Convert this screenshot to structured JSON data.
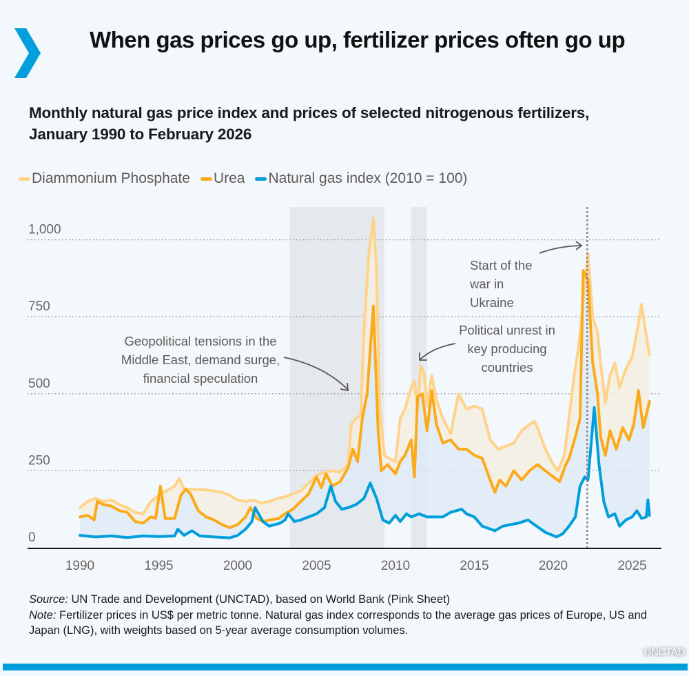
{
  "header": {
    "icon": "chevron-right-icon",
    "title": "When gas prices go up, fertilizer prices often go up",
    "subtitle": "Monthly natural gas price index and prices of selected nitrogenous fertilizers, January 1990 to February 2026"
  },
  "colors": {
    "brand": "#009edb",
    "dap": "#ffd38a",
    "urea": "#fbaa19",
    "gas": "#009edb",
    "highlight_band": "#e5e9ee",
    "background": "#f3f8fc"
  },
  "legend": [
    {
      "label": "Diammonium Phosphate",
      "color": "#ffd38a"
    },
    {
      "label": "Urea",
      "color": "#fbaa19"
    },
    {
      "label": "Natural gas index (2010 = 100)",
      "color": "#009edb"
    }
  ],
  "chart_data": {
    "type": "line",
    "title": "Monthly natural gas price index and prices of selected nitrogenous fertilizers, January 1990 to February 2026",
    "xlabel": "",
    "ylabel": "",
    "xlim": [
      1986.7,
      2027.3
    ],
    "ylim": [
      0,
      1000
    ],
    "grid": true,
    "legend_position": "top-left",
    "x_ticks": [
      1990,
      1995,
      2000,
      2005,
      2010,
      2015,
      2020,
      2025
    ],
    "x_tick_labels": [
      "1990",
      "1995",
      "2000",
      "2005",
      "2010",
      "2015",
      "2020",
      "2025"
    ],
    "y_ticks": [
      0,
      250,
      500,
      750,
      1000
    ],
    "y_tick_labels": [
      "0",
      "250",
      "500",
      "750",
      "1,000"
    ],
    "highlight_periods": [
      {
        "from": 2003.3,
        "to": 2009.3
      },
      {
        "from": 2011.0,
        "to": 2012.0
      }
    ],
    "event_line": {
      "x": 2022.15,
      "label": "Start of the war in Ukraine"
    },
    "annotations": [
      {
        "name": "geopolitical",
        "lines": [
          "Geopolitical tensions in the",
          "Middle East, demand surge,",
          "financial speculation"
        ]
      },
      {
        "name": "unrest",
        "lines": [
          "Political unrest in",
          "key producing",
          "countries"
        ]
      },
      {
        "name": "ukraine",
        "lines": [
          "Start of the",
          "war in",
          "Ukraine"
        ]
      }
    ],
    "series": [
      {
        "name": "Diammonium Phosphate",
        "color": "#ffd38a",
        "x": [
          1990,
          1990.5,
          1991,
          1991.5,
          1992,
          1992.5,
          1993,
          1993.5,
          1994,
          1994.5,
          1995,
          1995.5,
          1996,
          1996.3,
          1996.6,
          1997,
          1998,
          1999,
          1999.5,
          2000,
          2000.5,
          2001,
          2001.5,
          2002,
          2002.5,
          2003,
          2003.5,
          2004,
          2004.5,
          2005,
          2005.5,
          2006,
          2006.5,
          2007,
          2007.2,
          2007.5,
          2007.8,
          2008,
          2008.3,
          2008.6,
          2008.8,
          2009,
          2009.3,
          2009.6,
          2010,
          2010.3,
          2010.6,
          2011,
          2011.2,
          2011.4,
          2011.6,
          2011.8,
          2012,
          2012.3,
          2012.6,
          2013,
          2013.5,
          2014,
          2014.5,
          2015,
          2015.5,
          2016,
          2016.5,
          2017,
          2017.5,
          2018,
          2018.5,
          2018.8,
          2019,
          2019.5,
          2020,
          2020.3,
          2020.7,
          2021,
          2021.3,
          2021.6,
          2021.8,
          2022.2,
          2022.5,
          2022.8,
          2023,
          2023.3,
          2023.6,
          2023.9,
          2024.2,
          2024.6,
          2025,
          2025.3,
          2025.6,
          2025.8,
          2026.1
        ],
        "values": [
          130,
          150,
          160,
          150,
          155,
          140,
          130,
          115,
          110,
          150,
          170,
          185,
          200,
          225,
          190,
          190,
          188,
          180,
          170,
          155,
          150,
          155,
          145,
          150,
          160,
          165,
          175,
          185,
          210,
          235,
          245,
          250,
          245,
          270,
          400,
          420,
          430,
          700,
          950,
          1070,
          900,
          450,
          300,
          290,
          280,
          420,
          450,
          520,
          540,
          450,
          590,
          570,
          460,
          560,
          480,
          420,
          370,
          500,
          450,
          460,
          450,
          350,
          320,
          330,
          340,
          380,
          400,
          410,
          390,
          320,
          270,
          250,
          300,
          420,
          550,
          650,
          750,
          955,
          750,
          700,
          600,
          470,
          560,
          600,
          520,
          580,
          620,
          700,
          790,
          720,
          625
        ]
      },
      {
        "name": "Urea",
        "color": "#fbaa19",
        "x": [
          1990,
          1990.5,
          1990.9,
          1991.1,
          1991.5,
          1992,
          1992.5,
          1993,
          1993.5,
          1994,
          1994.5,
          1994.8,
          1995.1,
          1995.4,
          1996,
          1996.4,
          1996.7,
          1997,
          1997.5,
          1998,
          1998.5,
          1999,
          1999.5,
          2000,
          2000.5,
          2000.8,
          2001.2,
          2001.6,
          2002,
          2002.6,
          2003,
          2003.5,
          2004,
          2004.5,
          2005,
          2005.3,
          2005.6,
          2006,
          2006.5,
          2007,
          2007.3,
          2007.6,
          2007.9,
          2008.2,
          2008.6,
          2008.9,
          2009.1,
          2009.5,
          2010,
          2010.3,
          2010.6,
          2011,
          2011.2,
          2011.4,
          2011.7,
          2012,
          2012.3,
          2012.6,
          2013,
          2013.5,
          2014,
          2014.5,
          2015,
          2015.5,
          2016,
          2016.3,
          2016.6,
          2017,
          2017.5,
          2018,
          2018.5,
          2019,
          2019.5,
          2020,
          2020.4,
          2020.8,
          2021,
          2021.4,
          2021.7,
          2021.9,
          2022.2,
          2022.5,
          2022.8,
          2023,
          2023.3,
          2023.6,
          2024,
          2024.4,
          2024.8,
          2025.1,
          2025.4,
          2025.7,
          2026.1
        ],
        "values": [
          100,
          105,
          90,
          150,
          140,
          135,
          120,
          115,
          85,
          80,
          100,
          95,
          200,
          95,
          95,
          170,
          190,
          175,
          120,
          100,
          90,
          75,
          65,
          75,
          100,
          130,
          95,
          85,
          90,
          95,
          110,
          125,
          150,
          175,
          230,
          195,
          240,
          200,
          215,
          260,
          320,
          280,
          420,
          500,
          785,
          380,
          250,
          270,
          240,
          280,
          300,
          350,
          230,
          490,
          500,
          380,
          510,
          400,
          340,
          350,
          320,
          320,
          300,
          290,
          220,
          180,
          220,
          200,
          250,
          220,
          250,
          270,
          250,
          230,
          215,
          270,
          290,
          360,
          420,
          900,
          870,
          600,
          500,
          360,
          300,
          380,
          320,
          390,
          350,
          400,
          510,
          390,
          475
        ]
      },
      {
        "name": "Natural gas index (2010 = 100)",
        "color": "#009edb",
        "x": [
          1990,
          1991,
          1992,
          1993,
          1994,
          1995,
          1996,
          1996.2,
          1996.6,
          1997.1,
          1997.6,
          1998.5,
          1999.5,
          2000,
          2000.5,
          2000.9,
          2001.1,
          2001.6,
          2002,
          2002.7,
          2003,
          2003.2,
          2003.6,
          2004,
          2004.5,
          2005,
          2005.5,
          2005.9,
          2006.2,
          2006.6,
          2007,
          2007.5,
          2008,
          2008.4,
          2008.8,
          2009.2,
          2009.6,
          2010,
          2010.3,
          2010.7,
          2011,
          2011.5,
          2012,
          2012.5,
          2013,
          2013.5,
          2014.2,
          2014.5,
          2015,
          2015.5,
          2016.3,
          2016.8,
          2017.3,
          2017.8,
          2018.4,
          2018.8,
          2019.5,
          2020.2,
          2020.6,
          2021,
          2021.4,
          2021.7,
          2022,
          2022.2,
          2022.6,
          2022.9,
          2023.2,
          2023.5,
          2023.9,
          2024.2,
          2024.6,
          2025,
          2025.3,
          2025.6,
          2025.9,
          2026,
          2026.1
        ],
        "values": [
          40,
          35,
          38,
          33,
          38,
          36,
          38,
          60,
          40,
          55,
          38,
          35,
          32,
          40,
          60,
          85,
          130,
          85,
          70,
          80,
          90,
          110,
          85,
          90,
          100,
          110,
          130,
          200,
          150,
          125,
          130,
          140,
          160,
          210,
          160,
          90,
          80,
          105,
          85,
          110,
          100,
          110,
          100,
          100,
          100,
          115,
          125,
          110,
          100,
          70,
          55,
          70,
          75,
          80,
          90,
          75,
          50,
          35,
          45,
          70,
          100,
          200,
          230,
          220,
          455,
          270,
          150,
          100,
          110,
          70,
          90,
          100,
          120,
          95,
          100,
          155,
          105
        ]
      }
    ]
  },
  "footer": {
    "source_label": "Source:",
    "source_text": " UN Trade and Development (UNCTAD), based on World Bank (Pink Sheet)",
    "note_label": "Note:",
    "note_text": " Fertilizer prices in US$ per metric tonne. Natural gas index corresponds to the average gas prices of Europe, US and Japan (LNG), with weights based on 5-year average consumption volumes.",
    "badge": "UNCTAD"
  }
}
